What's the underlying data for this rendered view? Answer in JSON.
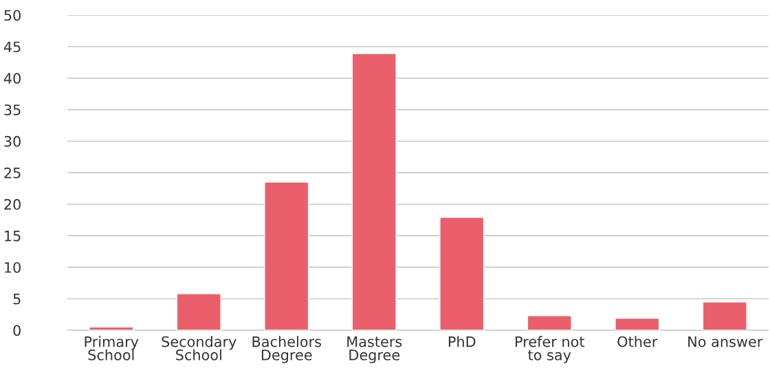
{
  "chart_data": {
    "type": "bar",
    "categories": [
      "Primary\nSchool",
      "Secondary\nSchool",
      "Bachelors\nDegree",
      "Masters\nDegree",
      "PhD",
      "Prefer not\nto say",
      "Other",
      "No answer"
    ],
    "values": [
      0.5,
      5.8,
      23.5,
      43.9,
      17.9,
      2.3,
      1.9,
      4.5
    ],
    "color": "#ea5f6b",
    "ylim": [
      0,
      50
    ],
    "yticks": [
      0,
      5,
      10,
      15,
      20,
      25,
      30,
      35,
      40,
      45,
      50
    ],
    "grid": "y",
    "legend": false
  }
}
